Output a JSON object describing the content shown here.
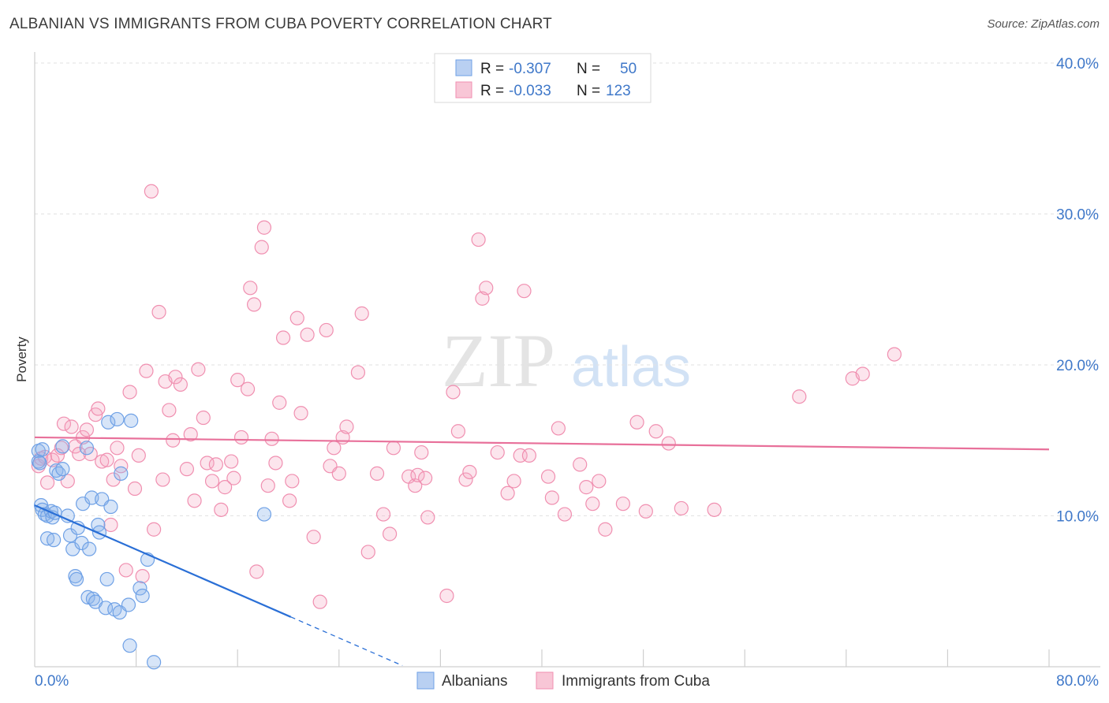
{
  "header": {
    "title": "ALBANIAN VS IMMIGRANTS FROM CUBA POVERTY CORRELATION CHART",
    "source": "Source: ZipAtlas.com"
  },
  "watermark": {
    "zip": "ZIP",
    "atlas": "atlas"
  },
  "colors": {
    "blue": "#6fa1e6",
    "blue_fill": "rgba(140,180,235,0.35)",
    "blue_line": "#2a6fd6",
    "pink": "#f08fb0",
    "pink_fill": "rgba(245,170,195,0.30)",
    "pink_line": "#e8709a",
    "tick_text": "#3f78c9"
  },
  "legend": {
    "rows": [
      {
        "r_label": "R =",
        "r_value": "-0.307",
        "n_label": "N =",
        "n_value": "50"
      },
      {
        "r_label": "R =",
        "r_value": "-0.033",
        "n_label": "N =",
        "n_value": "123"
      }
    ]
  },
  "bottom_legend": {
    "series1": "Albanians",
    "series2": "Immigrants from Cuba"
  },
  "chart_data": {
    "type": "scatter",
    "title": "ALBANIAN VS IMMIGRANTS FROM CUBA POVERTY CORRELATION CHART",
    "xlabel": "",
    "ylabel": "Poverty",
    "xlim": [
      0,
      80
    ],
    "ylim": [
      0,
      40
    ],
    "x_tick_labels": [
      "0.0%",
      "80.0%"
    ],
    "y_ticks": [
      10,
      20,
      30,
      40
    ],
    "y_tick_labels": [
      "10.0%",
      "20.0%",
      "30.0%",
      "40.0%"
    ],
    "grid": true,
    "legend_position": "top-center",
    "series": [
      {
        "name": "Albanians",
        "trend": {
          "x0": 0,
          "y0": 10.7,
          "x1": 20.2,
          "y1": 3.3,
          "dash_to_x": 29
        },
        "points": [
          [
            0.3,
            14.3
          ],
          [
            0.3,
            13.6
          ],
          [
            0.4,
            13.5
          ],
          [
            0.5,
            10.7
          ],
          [
            0.6,
            10.4
          ],
          [
            0.8,
            10.1
          ],
          [
            1.0,
            8.5
          ],
          [
            1.0,
            10.0
          ],
          [
            1.3,
            10.3
          ],
          [
            1.4,
            9.9
          ],
          [
            1.5,
            8.4
          ],
          [
            1.6,
            10.2
          ],
          [
            1.7,
            13.0
          ],
          [
            1.9,
            12.8
          ],
          [
            2.2,
            13.1
          ],
          [
            2.2,
            14.6
          ],
          [
            2.6,
            10.0
          ],
          [
            2.8,
            8.7
          ],
          [
            3.0,
            7.8
          ],
          [
            3.2,
            6.0
          ],
          [
            3.3,
            5.8
          ],
          [
            3.4,
            9.2
          ],
          [
            3.7,
            8.2
          ],
          [
            3.8,
            10.8
          ],
          [
            4.1,
            14.5
          ],
          [
            4.2,
            4.6
          ],
          [
            4.3,
            7.8
          ],
          [
            4.5,
            11.2
          ],
          [
            4.6,
            4.5
          ],
          [
            4.8,
            4.3
          ],
          [
            5.0,
            9.4
          ],
          [
            5.1,
            8.9
          ],
          [
            5.3,
            11.1
          ],
          [
            5.6,
            3.9
          ],
          [
            5.7,
            5.8
          ],
          [
            5.8,
            16.2
          ],
          [
            6.0,
            10.6
          ],
          [
            6.3,
            3.8
          ],
          [
            6.5,
            16.4
          ],
          [
            6.7,
            3.6
          ],
          [
            6.8,
            12.8
          ],
          [
            7.4,
            4.1
          ],
          [
            7.5,
            1.4
          ],
          [
            7.6,
            16.3
          ],
          [
            8.3,
            5.2
          ],
          [
            8.5,
            4.7
          ],
          [
            8.9,
            7.1
          ],
          [
            9.4,
            0.3
          ],
          [
            18.1,
            10.1
          ],
          [
            0.6,
            14.4
          ]
        ]
      },
      {
        "name": "Immigrants from Cuba",
        "trend": {
          "x0": 0,
          "y0": 15.2,
          "x1": 80,
          "y1": 14.4
        },
        "points": [
          [
            0.3,
            13.3
          ],
          [
            0.5,
            13.8
          ],
          [
            0.8,
            13.9
          ],
          [
            1.0,
            12.2
          ],
          [
            1.4,
            13.7
          ],
          [
            1.8,
            14.0
          ],
          [
            2.1,
            14.5
          ],
          [
            2.3,
            16.1
          ],
          [
            2.6,
            12.3
          ],
          [
            2.9,
            15.9
          ],
          [
            3.2,
            14.6
          ],
          [
            3.5,
            14.1
          ],
          [
            3.8,
            15.2
          ],
          [
            4.1,
            15.7
          ],
          [
            4.4,
            14.1
          ],
          [
            4.8,
            16.7
          ],
          [
            5.0,
            17.1
          ],
          [
            5.3,
            13.6
          ],
          [
            5.7,
            13.7
          ],
          [
            6.0,
            9.4
          ],
          [
            6.2,
            12.4
          ],
          [
            6.5,
            14.5
          ],
          [
            6.8,
            13.3
          ],
          [
            7.2,
            6.4
          ],
          [
            7.5,
            18.2
          ],
          [
            7.9,
            11.8
          ],
          [
            8.2,
            14.0
          ],
          [
            8.5,
            6.0
          ],
          [
            8.8,
            19.6
          ],
          [
            9.2,
            31.5
          ],
          [
            9.4,
            9.1
          ],
          [
            9.8,
            23.5
          ],
          [
            10.1,
            12.4
          ],
          [
            10.3,
            18.9
          ],
          [
            10.6,
            17.0
          ],
          [
            10.9,
            15.0
          ],
          [
            11.1,
            19.2
          ],
          [
            11.5,
            18.7
          ],
          [
            12.0,
            13.1
          ],
          [
            12.3,
            15.4
          ],
          [
            12.6,
            11.0
          ],
          [
            12.9,
            19.7
          ],
          [
            13.3,
            16.5
          ],
          [
            13.6,
            13.5
          ],
          [
            14.0,
            12.3
          ],
          [
            14.3,
            13.4
          ],
          [
            14.7,
            10.4
          ],
          [
            15.0,
            11.9
          ],
          [
            15.5,
            13.6
          ],
          [
            15.7,
            12.5
          ],
          [
            16.0,
            19.0
          ],
          [
            16.3,
            15.2
          ],
          [
            16.8,
            18.4
          ],
          [
            17.0,
            25.1
          ],
          [
            17.3,
            24.0
          ],
          [
            17.5,
            6.3
          ],
          [
            17.9,
            27.8
          ],
          [
            18.1,
            29.1
          ],
          [
            18.4,
            12.0
          ],
          [
            18.7,
            15.1
          ],
          [
            19.0,
            13.5
          ],
          [
            19.3,
            17.5
          ],
          [
            19.6,
            21.8
          ],
          [
            20.1,
            11.0
          ],
          [
            20.3,
            12.3
          ],
          [
            20.7,
            23.1
          ],
          [
            21.0,
            16.8
          ],
          [
            21.5,
            22.0
          ],
          [
            22.0,
            8.6
          ],
          [
            22.5,
            4.3
          ],
          [
            23.0,
            22.3
          ],
          [
            23.3,
            13.3
          ],
          [
            23.6,
            14.5
          ],
          [
            24.0,
            12.8
          ],
          [
            24.3,
            15.2
          ],
          [
            24.6,
            15.9
          ],
          [
            25.5,
            19.5
          ],
          [
            25.8,
            23.4
          ],
          [
            26.3,
            7.6
          ],
          [
            27.0,
            12.8
          ],
          [
            27.5,
            10.1
          ],
          [
            28.0,
            8.8
          ],
          [
            28.3,
            14.5
          ],
          [
            29.5,
            12.6
          ],
          [
            30.0,
            12.0
          ],
          [
            30.2,
            12.7
          ],
          [
            30.5,
            14.2
          ],
          [
            30.8,
            12.5
          ],
          [
            31.0,
            9.9
          ],
          [
            32.5,
            4.7
          ],
          [
            33.0,
            18.2
          ],
          [
            33.4,
            15.6
          ],
          [
            34.0,
            12.4
          ],
          [
            34.3,
            12.9
          ],
          [
            35.0,
            28.3
          ],
          [
            35.3,
            24.4
          ],
          [
            35.6,
            25.1
          ],
          [
            36.5,
            14.2
          ],
          [
            37.3,
            11.5
          ],
          [
            37.8,
            12.3
          ],
          [
            38.3,
            14.0
          ],
          [
            38.6,
            24.9
          ],
          [
            39.0,
            14.0
          ],
          [
            40.5,
            12.6
          ],
          [
            40.8,
            11.2
          ],
          [
            41.3,
            15.8
          ],
          [
            41.8,
            10.1
          ],
          [
            43.0,
            13.4
          ],
          [
            43.5,
            11.9
          ],
          [
            44.0,
            10.8
          ],
          [
            44.5,
            12.3
          ],
          [
            45.0,
            9.1
          ],
          [
            46.4,
            10.8
          ],
          [
            47.5,
            16.2
          ],
          [
            48.2,
            10.3
          ],
          [
            49.0,
            15.6
          ],
          [
            50.0,
            14.8
          ],
          [
            51.0,
            10.5
          ],
          [
            53.6,
            10.4
          ],
          [
            60.3,
            17.9
          ],
          [
            64.5,
            19.1
          ],
          [
            65.3,
            19.4
          ],
          [
            67.8,
            20.7
          ]
        ]
      }
    ]
  }
}
